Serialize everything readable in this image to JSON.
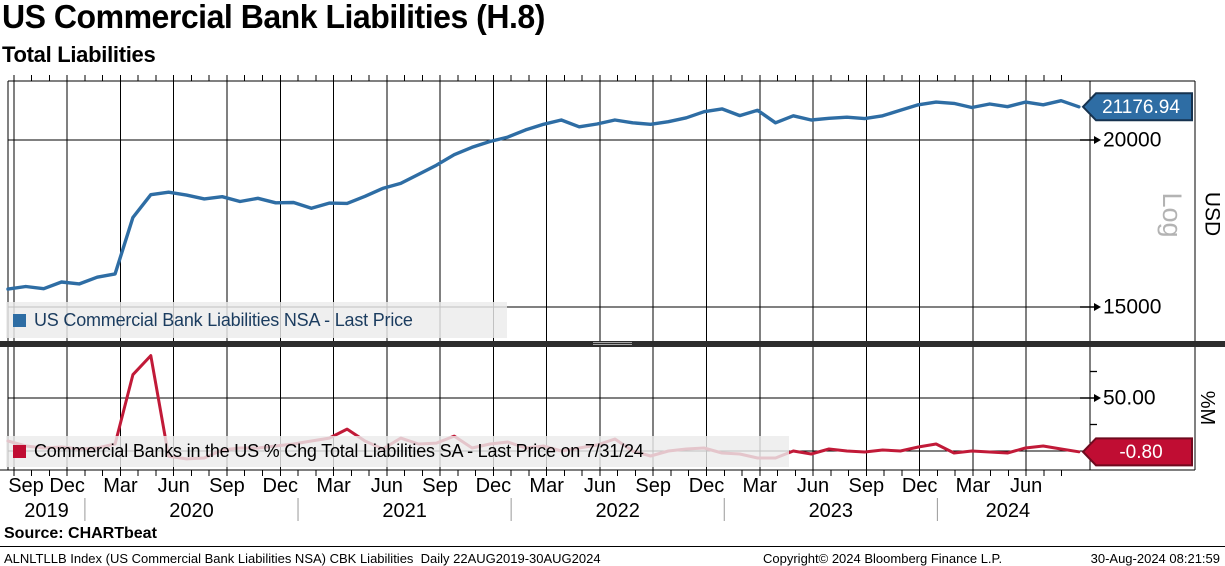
{
  "header": {
    "title": "US Commercial Bank Liabilities (H.8)",
    "subtitle": "Total Liabilities"
  },
  "source_label": "Source: CHARTbeat",
  "footer": {
    "left": "ALNLTLLB Index (US Commercial Bank Liabilities NSA) CBK Liabilities  Daily 22AUG2019-30AUG2024",
    "center": "Copyright© 2024 Bloomberg Finance L.P.",
    "right": "30-Aug-2024 08:21:59"
  },
  "colors": {
    "blue": "#2e6da4",
    "blue_badge": "#2e6da4",
    "blue_badge_border": "#16324f",
    "red": "#c11a38",
    "red_badge": "#c00d33",
    "red_badge_border": "#6f0a1f",
    "grid": "#000000",
    "year_divider": "#999999",
    "separator_bar": "#2d2d2d",
    "separator_grip": "#a6a6a6",
    "log_label": "#b3b3b3",
    "legend_text_top": "#1b3c5f"
  },
  "x_axis": {
    "start_date": "22AUG2019",
    "end_date": "30AUG2024",
    "quarter_tick_labels": [
      "Sep",
      "Dec",
      "Mar",
      "Jun",
      "Sep",
      "Dec",
      "Mar",
      "Jun",
      "Sep",
      "Dec",
      "Mar",
      "Jun",
      "Sep",
      "Dec",
      "Mar",
      "Jun",
      "Sep",
      "Dec",
      "Mar",
      "Jun"
    ],
    "year_labels": [
      "2019",
      "2020",
      "2021",
      "2022",
      "2023",
      "2024"
    ]
  },
  "chart_data": [
    {
      "type": "line",
      "panel": "top",
      "name": "US Commercial Bank Liabilities NSA - Last Price",
      "unit": "USD",
      "scale_label": "Log",
      "last_price": 21176.94,
      "last_price_label": "21176.94",
      "y_tick_values": [
        20000,
        15000
      ],
      "y_tick_labels": [
        "20000",
        "15000"
      ],
      "ylim": [
        14150,
        22150
      ],
      "grid": true,
      "legend_position": "bottom-left",
      "x_monthly_start": "Aug 2019",
      "values": [
        15470,
        15540,
        15480,
        15660,
        15610,
        15790,
        15880,
        17500,
        18200,
        18280,
        18190,
        18070,
        18140,
        17990,
        18090,
        17950,
        17960,
        17780,
        17940,
        17930,
        18150,
        18400,
        18560,
        18850,
        19150,
        19500,
        19750,
        19950,
        20100,
        20350,
        20550,
        20700,
        20460,
        20560,
        20700,
        20600,
        20550,
        20640,
        20780,
        21000,
        21100,
        20860,
        21050,
        20600,
        20850,
        20700,
        20760,
        20800,
        20750,
        20850,
        21050,
        21250,
        21350,
        21300,
        21150,
        21280,
        21180,
        21350,
        21250,
        21400,
        21176.94
      ]
    },
    {
      "type": "line",
      "panel": "bottom",
      "name": "Commercial Banks in the US % Chg Total Liabilities SA - Last Price on 7/31/24",
      "unit": "%M",
      "last_price": -0.8,
      "last_price_label": "-0.80",
      "y_tick_values": [
        50
      ],
      "y_tick_labels": [
        "50.00"
      ],
      "y_minor_tick_values": [
        75,
        25
      ],
      "zero_line": true,
      "ylim": [
        -19,
        98
      ],
      "grid": true,
      "legend_position": "bottom-left",
      "x_monthly_start": "Aug 2019",
      "values": [
        9.4,
        4.7,
        2.8,
        3.8,
        1.9,
        2.8,
        6.6,
        72,
        90,
        -5,
        -7.5,
        -6.6,
        0.9,
        2.8,
        2.8,
        4.7,
        6.6,
        9.4,
        12.2,
        20.7,
        9.4,
        1.9,
        12.2,
        6.6,
        7.5,
        14.1,
        2.8,
        6.6,
        8.5,
        2.8,
        4.7,
        0,
        2.8,
        5.7,
        11.3,
        0,
        -4.7,
        0,
        1.9,
        2.8,
        -1.9,
        -2.8,
        -6.6,
        -6.6,
        0,
        -2.8,
        1.9,
        0,
        -0.9,
        0.9,
        0,
        3.8,
        6.6,
        -1.9,
        0,
        -0.9,
        -1.9,
        2.8,
        4.7,
        1.9,
        -0.8
      ]
    }
  ]
}
